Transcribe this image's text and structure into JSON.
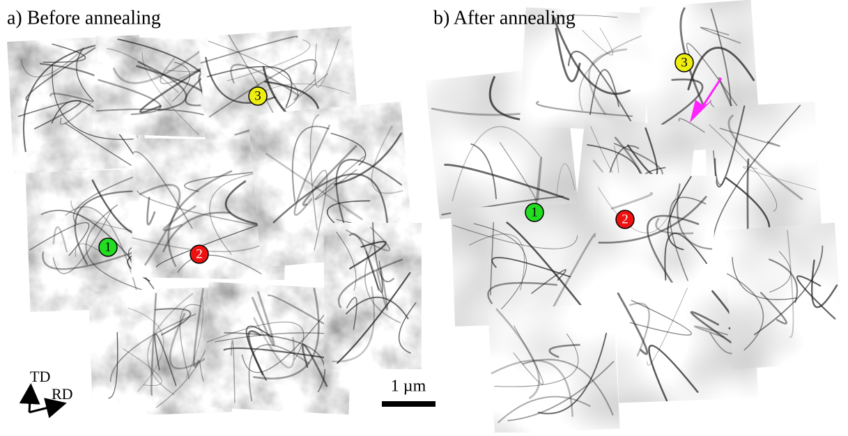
{
  "panels": [
    {
      "title": "a) Before annealing",
      "markers": [
        "1",
        "2",
        "3"
      ]
    },
    {
      "title": "b) After annealing",
      "markers": [
        "1",
        "2",
        "3"
      ]
    }
  ],
  "axes": {
    "vertical": "TD",
    "horizontal": "RD"
  },
  "scale_bar": "1 µm"
}
